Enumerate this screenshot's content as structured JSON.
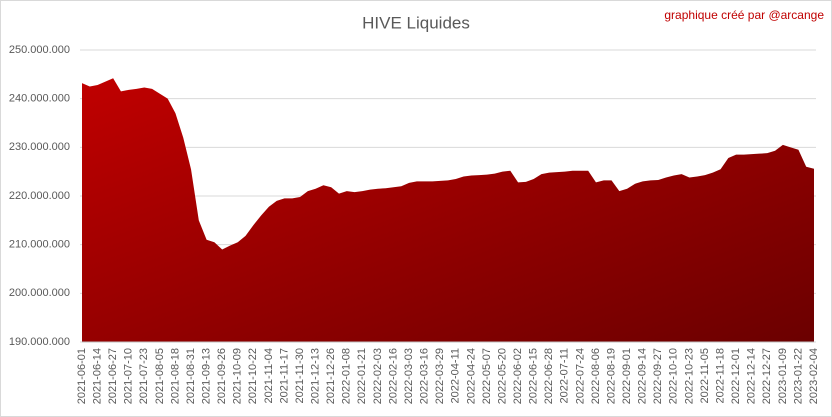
{
  "chart_data": {
    "type": "area",
    "title": "HIVE Liquides",
    "annotation": "graphique créé par @arcange",
    "categories": [
      "2021-06-01",
      null,
      "2021-06-14",
      null,
      "2021-06-27",
      null,
      "2021-07-10",
      null,
      "2021-07-23",
      null,
      "2021-08-05",
      null,
      "2021-08-18",
      null,
      "2021-08-31",
      null,
      "2021-09-13",
      null,
      "2021-09-26",
      null,
      "2021-10-09",
      null,
      "2021-10-22",
      null,
      "2021-11-04",
      null,
      "2021-11-17",
      null,
      "2021-11-30",
      null,
      "2021-12-13",
      null,
      "2021-12-26",
      null,
      "2022-01-08",
      null,
      "2022-01-21",
      null,
      "2022-02-03",
      null,
      "2022-02-16",
      null,
      "2022-03-03",
      null,
      "2022-03-16",
      null,
      "2022-03-29",
      null,
      "2022-04-11",
      null,
      "2022-04-24",
      null,
      "2022-05-07",
      null,
      "2022-05-20",
      null,
      "2022-06-02",
      null,
      "2022-06-15",
      null,
      "2022-06-28",
      null,
      "2022-07-11",
      null,
      "2022-07-24",
      null,
      "2022-08-06",
      null,
      "2022-08-19",
      null,
      "2022-09-01",
      null,
      "2022-09-14",
      null,
      "2022-09-27",
      null,
      "2022-10-10",
      null,
      "2022-10-23",
      null,
      "2022-11-05",
      null,
      "2022-11-18",
      null,
      "2022-12-01",
      null,
      "2022-12-14",
      null,
      "2022-12-27",
      null,
      "2023-01-09",
      null,
      "2023-01-22",
      null,
      "2023-02-04"
    ],
    "values": [
      243200000,
      242500000,
      242800000,
      243500000,
      244200000,
      241500000,
      241800000,
      242000000,
      242300000,
      242000000,
      241000000,
      240000000,
      237000000,
      232000000,
      225500000,
      215000000,
      211000000,
      210500000,
      209000000,
      209800000,
      210500000,
      211800000,
      214000000,
      216000000,
      217800000,
      219000000,
      219500000,
      219500000,
      219800000,
      221000000,
      221500000,
      222200000,
      221800000,
      220500000,
      221000000,
      220800000,
      221000000,
      221300000,
      221500000,
      221600000,
      221800000,
      222000000,
      222700000,
      223000000,
      223000000,
      223000000,
      223100000,
      223200000,
      223500000,
      224000000,
      224200000,
      224300000,
      224400000,
      224600000,
      225000000,
      225200000,
      222800000,
      222900000,
      223500000,
      224500000,
      224800000,
      224900000,
      225000000,
      225200000,
      225200000,
      225200000,
      222800000,
      223200000,
      223200000,
      221000000,
      221500000,
      222500000,
      223000000,
      223200000,
      223300000,
      223800000,
      224200000,
      224500000,
      223800000,
      224000000,
      224300000,
      224800000,
      225500000,
      227800000,
      228500000,
      228500000,
      228600000,
      228700000,
      228800000,
      229300000,
      230500000,
      230000000,
      229500000,
      226000000,
      225600000
    ],
    "color": [
      "#c00000",
      "#6b0000"
    ],
    "ylim": [
      190000000,
      250000000
    ],
    "yticks": [
      {
        "value": 190000000,
        "label": "190.000.000"
      },
      {
        "value": 200000000,
        "label": "200.000.000"
      },
      {
        "value": 210000000,
        "label": "210.000.000"
      },
      {
        "value": 220000000,
        "label": "220.000.000"
      },
      {
        "value": 230000000,
        "label": "230.000.000"
      },
      {
        "value": 240000000,
        "label": "240.000.000"
      },
      {
        "value": 250000000,
        "label": "250.000.000"
      }
    ],
    "grid": true
  }
}
